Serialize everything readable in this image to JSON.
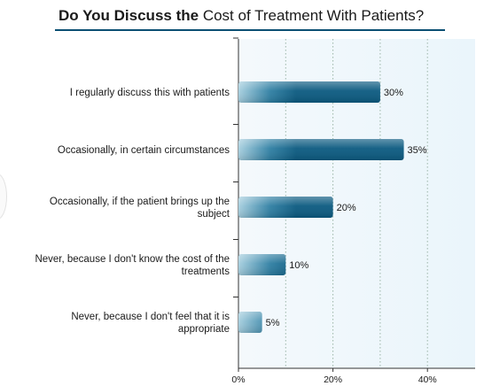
{
  "title": {
    "bold": "Do You Discuss the",
    "regular": "Cost of Treatment With Patients?"
  },
  "colors": {
    "accent": "#0b4f73",
    "bar_dark": "#0b5a80",
    "bar_light": "#a6cfdf",
    "plot_bg": "#eaf5fb",
    "grid": "#9bb5a8"
  },
  "chart_data": {
    "type": "bar",
    "orientation": "horizontal",
    "title": "Do You Discuss the Cost of Treatment With Patients?",
    "categories": [
      [
        "I regularly discuss this with patients"
      ],
      [
        "Occasionally, in certain circumstances"
      ],
      [
        "Occasionally, if the patient brings up the",
        "subject"
      ],
      [
        "Never, because I don't know the cost of the",
        "treatments"
      ],
      [
        "Never, because I don't feel that it is",
        "appropriate"
      ]
    ],
    "values": [
      30,
      35,
      20,
      10,
      5
    ],
    "value_labels": [
      "30%",
      "35%",
      "20%",
      "10%",
      "5%"
    ],
    "xlim": [
      0,
      50
    ],
    "xticks": [
      0,
      20,
      40
    ],
    "xtick_labels": [
      "0%",
      "20%",
      "40%"
    ],
    "gridlines": [
      10,
      20,
      30,
      40
    ],
    "grid": true,
    "xlabel": "",
    "ylabel": ""
  }
}
